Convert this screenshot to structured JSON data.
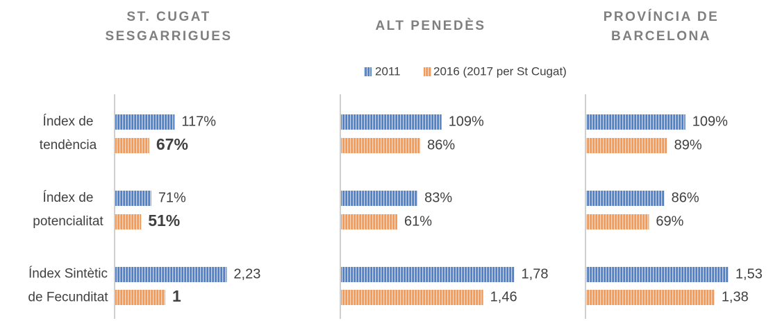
{
  "chart_data": {
    "type": "bar",
    "categories": [
      [
        "Índex de",
        "tendència"
      ],
      [
        "Índex de",
        "potencialitat"
      ],
      [
        "Índex Sintètic",
        "de Fecunditat"
      ]
    ],
    "series": [
      {
        "name": "2011",
        "color": "#4f81c7"
      },
      {
        "name": "2016 (2017 per St Cugat)",
        "color": "#f59a55"
      }
    ],
    "panels": [
      {
        "title": [
          "ST. CUGAT",
          "SESGARRIGUES"
        ],
        "xlims": [
          [
            0,
            411
          ],
          [
            0,
            411
          ],
          [
            0,
            4.17
          ]
        ],
        "series": [
          {
            "values": [
              117,
              71,
              2.23
            ],
            "value_labels": [
              "117%",
              "71%",
              "2,23"
            ]
          },
          {
            "values": [
              67,
              51,
              1
            ],
            "value_labels": [
              "67%",
              "51%",
              "1"
            ]
          }
        ]
      },
      {
        "title": [
          "ALT PENEDÈS"
        ],
        "xlims": [
          [
            0,
            226
          ],
          [
            0,
            226
          ],
          [
            0,
            2.14
          ]
        ],
        "series": [
          {
            "values": [
              109,
              83,
              1.78
            ],
            "value_labels": [
              "109%",
              "83%",
              "1,78"
            ]
          },
          {
            "values": [
              86,
              61,
              1.46
            ],
            "value_labels": [
              "86%",
              "61%",
              "1,46"
            ]
          }
        ]
      },
      {
        "title": [
          "PROVÍNCIA DE",
          "BARCELONA"
        ],
        "xlims": [
          [
            0,
            229
          ],
          [
            0,
            229
          ],
          [
            0,
            2.24
          ]
        ],
        "series": [
          {
            "values": [
              109,
              86,
              1.53
            ],
            "value_labels": [
              "109%",
              "86%",
              "1,53"
            ]
          },
          {
            "values": [
              89,
              69,
              1.38
            ],
            "value_labels": [
              "89%",
              "69%",
              "1,38"
            ]
          }
        ]
      }
    ]
  }
}
